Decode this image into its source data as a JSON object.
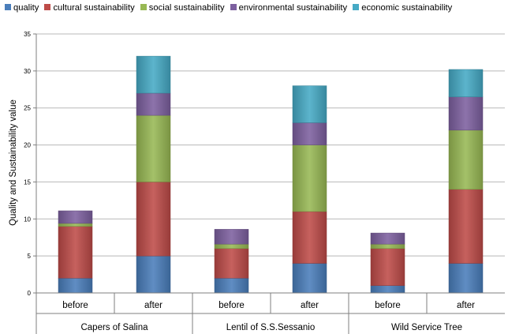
{
  "chart_data": {
    "type": "bar",
    "stacked": true,
    "ylabel": "Quality and  Sustainability value",
    "ylim": [
      0,
      35
    ],
    "yticks": [
      0,
      5,
      10,
      15,
      20,
      25,
      30,
      35
    ],
    "grid": true,
    "legend_position": "top",
    "categories": [
      "before",
      "after",
      "before",
      "after",
      "before",
      "after"
    ],
    "groups": [
      "Capers of Salina",
      "Lentil of S.S.Sessanio",
      "Wild Service Tree"
    ],
    "series": [
      {
        "name": "quality",
        "color": "#4a7ebb",
        "values": [
          2,
          5,
          2,
          4,
          1,
          4
        ]
      },
      {
        "name": "cultural sustainability",
        "color": "#be4b48",
        "values": [
          7,
          10,
          4,
          7,
          5,
          10
        ]
      },
      {
        "name": "social sustainability",
        "color": "#98b954",
        "values": [
          0.4,
          9,
          0.6,
          9,
          0.6,
          8
        ]
      },
      {
        "name": "environmental sustainability",
        "color": "#7d60a0",
        "values": [
          1.7,
          3,
          2,
          3,
          1.5,
          4.5
        ]
      },
      {
        "name": "economic sustainability",
        "color": "#46aac5",
        "values": [
          0,
          5,
          0,
          5,
          0,
          3.7
        ]
      }
    ]
  }
}
